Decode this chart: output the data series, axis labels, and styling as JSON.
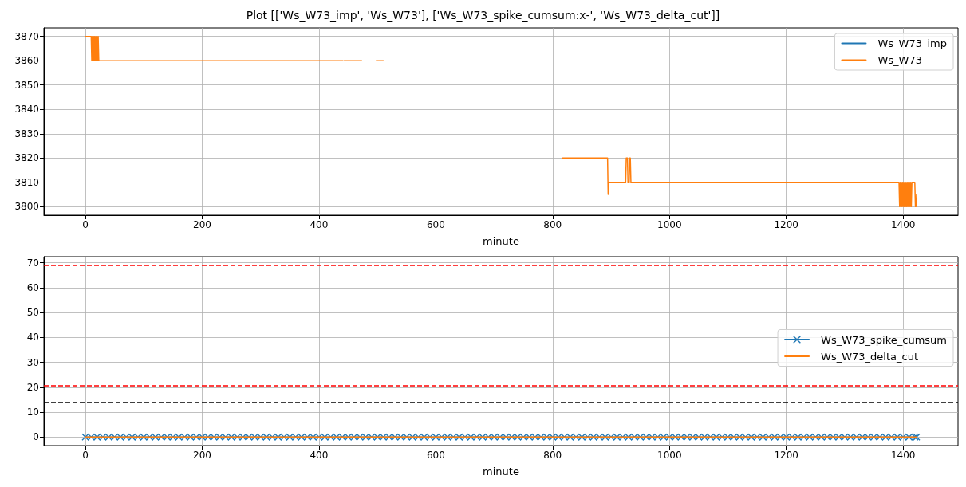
{
  "chart_data": [
    {
      "type": "line",
      "title": "Plot [['Ws_W73_imp', 'Ws_W73'], ['Ws_W73_spike_cumsum:x-', 'Ws_W73_delta_cut']]",
      "xlabel": "minute",
      "xlim": [
        -71,
        1494
      ],
      "xticks": [
        0,
        200,
        400,
        600,
        800,
        1000,
        1200,
        1400
      ],
      "ylim": [
        3796.5,
        3873.5
      ],
      "yticks": [
        3800,
        3810,
        3820,
        3830,
        3840,
        3850,
        3860,
        3870
      ],
      "grid": true,
      "legend": "top right",
      "x": [
        0,
        10,
        11,
        12,
        13,
        14,
        15,
        16,
        17,
        18,
        19,
        20,
        21,
        22,
        23,
        441,
        442,
        443,
        473,
        474,
        498,
        510,
        511,
        817,
        894,
        895,
        896,
        925,
        926,
        928,
        929,
        931,
        932,
        933,
        934,
        1393,
        1394,
        1395,
        1396,
        1397,
        1398,
        1399,
        1400,
        1401,
        1402,
        1403,
        1404,
        1405,
        1406,
        1407,
        1408,
        1409,
        1410,
        1411,
        1412,
        1413,
        1414,
        1415,
        1416,
        1420,
        1421,
        1422,
        1423
      ],
      "series": [
        {
          "name": "Ws_W73_imp",
          "color": "#1f77b4",
          "values": [
            null,
            null,
            null,
            null,
            null,
            null,
            null,
            null,
            null,
            null,
            null,
            null,
            null,
            null,
            null,
            null,
            null,
            null,
            null,
            null,
            null,
            null,
            null,
            null,
            null,
            null,
            null,
            null,
            null,
            null,
            null,
            null,
            null,
            null,
            null,
            null,
            null,
            null,
            null,
            null,
            null,
            null,
            null,
            null,
            null,
            null,
            null,
            null,
            null,
            null,
            null,
            null,
            null,
            null,
            null,
            null,
            null,
            null,
            null,
            null,
            null,
            null,
            null
          ]
        },
        {
          "name": "Ws_W73",
          "color": "#ff7f0e",
          "values": [
            3870,
            3870,
            3860,
            3870,
            3860,
            3870,
            3860,
            3870,
            3860,
            3870,
            3860,
            3870,
            3860,
            3870,
            3860,
            3860,
            null,
            3860,
            3860,
            null,
            3860,
            3860,
            null,
            3820,
            3820,
            3805,
            3810,
            3810,
            3820,
            3820,
            3810,
            3810,
            3820,
            3820,
            3810,
            3810,
            3800,
            3810,
            3800,
            3810,
            3800,
            3810,
            3800,
            3810,
            3800,
            3810,
            3800,
            3810,
            3800,
            3810,
            3800,
            3810,
            3800,
            3810,
            3800,
            3810,
            3800,
            3810,
            3810,
            3810,
            3800,
            3800,
            3805
          ]
        }
      ]
    },
    {
      "type": "line",
      "xlabel": "minute",
      "xlim": [
        -71,
        1494
      ],
      "xticks": [
        0,
        200,
        400,
        600,
        800,
        1000,
        1200,
        1400
      ],
      "ylim": [
        -3.45,
        72.45
      ],
      "yticks": [
        0,
        10,
        20,
        30,
        40,
        50,
        60,
        70
      ],
      "grid": true,
      "legend": "right",
      "x": [
        0,
        10,
        20,
        30,
        40,
        50,
        60,
        70,
        80,
        90,
        100,
        110,
        120,
        130,
        140,
        150,
        160,
        170,
        180,
        190,
        200,
        210,
        220,
        230,
        240,
        250,
        260,
        270,
        280,
        290,
        300,
        310,
        320,
        330,
        340,
        350,
        360,
        370,
        380,
        390,
        400,
        410,
        420,
        430,
        440,
        450,
        460,
        470,
        480,
        490,
        500,
        510,
        520,
        530,
        540,
        550,
        560,
        570,
        580,
        590,
        600,
        610,
        620,
        630,
        640,
        650,
        660,
        670,
        680,
        690,
        700,
        710,
        720,
        730,
        740,
        750,
        760,
        770,
        780,
        790,
        800,
        810,
        820,
        830,
        840,
        850,
        860,
        870,
        880,
        890,
        900,
        910,
        920,
        930,
        940,
        950,
        960,
        970,
        980,
        990,
        1000,
        1010,
        1020,
        1030,
        1040,
        1050,
        1060,
        1070,
        1080,
        1090,
        1100,
        1110,
        1120,
        1130,
        1140,
        1150,
        1160,
        1170,
        1180,
        1190,
        1200,
        1210,
        1220,
        1230,
        1240,
        1250,
        1260,
        1270,
        1280,
        1290,
        1300,
        1310,
        1320,
        1330,
        1340,
        1350,
        1360,
        1370,
        1380,
        1390,
        1400,
        1410,
        1420,
        1423
      ],
      "series": [
        {
          "name": "Ws_W73_spike_cumsum",
          "color": "#1f77b4",
          "marker": "cross",
          "values": [
            0,
            0,
            0,
            0,
            0,
            0,
            0,
            0,
            0,
            0,
            0,
            0,
            0,
            0,
            0,
            0,
            0,
            0,
            0,
            0,
            0,
            0,
            0,
            0,
            0,
            0,
            0,
            0,
            0,
            0,
            0,
            0,
            0,
            0,
            0,
            0,
            0,
            0,
            0,
            0,
            0,
            0,
            0,
            0,
            0,
            0,
            0,
            0,
            0,
            0,
            0,
            0,
            0,
            0,
            0,
            0,
            0,
            0,
            0,
            0,
            0,
            0,
            0,
            0,
            0,
            0,
            0,
            0,
            0,
            0,
            0,
            0,
            0,
            0,
            0,
            0,
            0,
            0,
            0,
            0,
            0,
            0,
            0,
            0,
            0,
            0,
            0,
            0,
            0,
            0,
            0,
            0,
            0,
            0,
            0,
            0,
            0,
            0,
            0,
            0,
            0,
            0,
            0,
            0,
            0,
            0,
            0,
            0,
            0,
            0,
            0,
            0,
            0,
            0,
            0,
            0,
            0,
            0,
            0,
            0,
            0,
            0,
            0,
            0,
            0,
            0,
            0,
            0,
            0,
            0,
            0,
            0,
            0,
            0,
            0,
            0,
            0,
            0,
            0,
            0,
            0,
            0,
            0,
            0
          ]
        },
        {
          "name": "Ws_W73_delta_cut",
          "color": "#ff7f0e",
          "values": [
            0,
            0,
            0,
            0,
            0,
            0,
            0,
            0,
            0,
            0,
            0,
            0,
            0,
            0,
            0,
            0,
            0,
            0,
            0,
            0,
            0,
            0,
            0,
            0,
            0,
            0,
            0,
            0,
            0,
            0,
            0,
            0,
            0,
            0,
            0,
            0,
            0,
            0,
            0,
            0,
            0,
            0,
            0,
            0,
            0,
            0,
            0,
            0,
            0,
            0,
            0,
            0,
            0,
            0,
            0,
            0,
            0,
            0,
            0,
            0,
            0,
            0,
            0,
            0,
            0,
            0,
            0,
            0,
            0,
            0,
            0,
            0,
            0,
            0,
            0,
            0,
            0,
            0,
            0,
            0,
            0,
            0,
            0,
            0,
            0,
            0,
            0,
            0,
            0,
            0,
            0,
            0,
            0,
            0,
            0,
            0,
            0,
            0,
            0,
            0,
            0,
            0,
            0,
            0,
            0,
            0,
            0,
            0,
            0,
            0,
            0,
            0,
            0,
            0,
            0,
            0,
            0,
            0,
            0,
            0,
            0,
            0,
            0,
            0,
            0,
            0,
            0,
            0,
            0,
            0,
            0,
            0,
            0,
            0,
            0,
            0,
            0,
            0,
            0,
            0,
            0,
            0,
            0,
            0
          ]
        }
      ],
      "ref_lines": [
        {
          "axis": "y",
          "value": 69,
          "color": "#ff0000",
          "line_style": "dashed"
        },
        {
          "axis": "y",
          "value": 20.6,
          "color": "#ff0000",
          "line_style": "dashed"
        },
        {
          "axis": "y",
          "value": 13.8,
          "color": "#000000",
          "line_style": "dashed"
        }
      ]
    }
  ]
}
